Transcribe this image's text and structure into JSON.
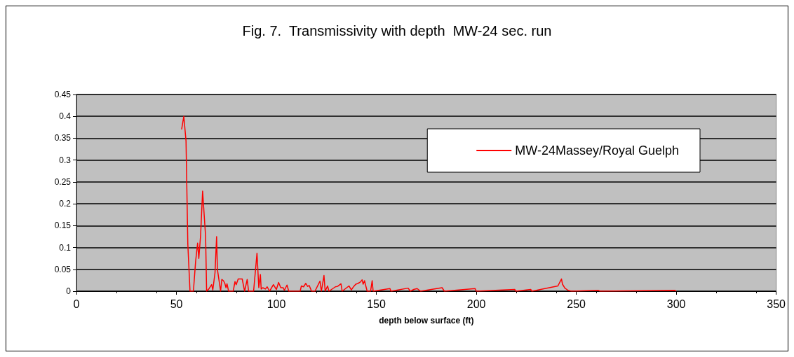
{
  "chart_data": {
    "type": "line",
    "title": "Fig. 7.  Transmissivity with depth  MW-24 sec. run",
    "xlabel": "depth below surface (ft)",
    "xlim": [
      0,
      350
    ],
    "xticks": [
      0,
      50,
      100,
      150,
      200,
      250,
      300,
      350
    ],
    "ylim": [
      0,
      0.45
    ],
    "yticks": [
      0,
      0.05,
      0.1,
      0.15,
      0.2,
      0.25,
      0.3,
      0.35,
      0.4,
      0.45
    ],
    "grid": "y",
    "legend": "top right",
    "marker": "none",
    "line_style": "solid",
    "series": [
      {
        "name": "MW-24Massey/Royal Guelph",
        "color": "#ff0000",
        "x": [
          52.6,
          53.7,
          54.8,
          55.7,
          56.8,
          58.5,
          59.6,
          60.6,
          61.2,
          62.1,
          63.1,
          64.6,
          65.1,
          66.2,
          67.6,
          68.2,
          69.3,
          70.1,
          70.5,
          72.1,
          72.7,
          73.5,
          74.2,
          74.8,
          75.3,
          76.1,
          78.4,
          79.3,
          79.9,
          80.9,
          81.8,
          82.9,
          84.1,
          85.4,
          86.1,
          88.6,
          90.3,
          91.2,
          92,
          92.4,
          93.2,
          94.5,
          95.4,
          96.6,
          98.5,
          100,
          101.1,
          102.2,
          103.4,
          104,
          105.3,
          106.2,
          111.9,
          112.5,
          113.6,
          114.7,
          115.6,
          116.4,
          117.6,
          119.3,
          121.8,
          122.5,
          123.8,
          124.4,
          125.6,
          126.3,
          129.5,
          130.6,
          132.3,
          132.9,
          134.6,
          136.3,
          137.5,
          138.7,
          139.7,
          140.9,
          142,
          142.9,
          143.4,
          144.1,
          144.5,
          145.4,
          147.1,
          147.9,
          148.4,
          156.8,
          157.3,
          165.9,
          167,
          168.7,
          170.4,
          172.1,
          182.9,
          184,
          199.4,
          200,
          219.2,
          219.8,
          227.2,
          227.8,
          240.8,
          241.8,
          242.6,
          243.1,
          244.3,
          245.9,
          247.6,
          261,
          262,
          299.4,
          300
        ],
        "values": [
          0.37,
          0.4,
          0.344,
          0.108,
          0,
          0,
          0.068,
          0.11,
          0.075,
          0.128,
          0.229,
          0.125,
          0,
          0.005,
          0.015,
          0.003,
          0.042,
          0.125,
          0.05,
          0,
          0.027,
          0.024,
          0.018,
          0.008,
          0.017,
          0,
          0,
          0.022,
          0.015,
          0.028,
          0.028,
          0.028,
          0,
          0.027,
          0,
          0,
          0.087,
          0.008,
          0.038,
          0.005,
          0.008,
          0.005,
          0.01,
          0,
          0.015,
          0.004,
          0.02,
          0.008,
          0.008,
          0.002,
          0.014,
          0,
          0,
          0.012,
          0.01,
          0.018,
          0.011,
          0.013,
          0,
          0,
          0.023,
          0,
          0.036,
          0,
          0.012,
          0,
          0.01,
          0.011,
          0.017,
          0,
          0.006,
          0.012,
          0.003,
          0.011,
          0.016,
          0.018,
          0.021,
          0.026,
          0.016,
          0.024,
          0.016,
          0,
          0,
          0.024,
          0,
          0.006,
          0,
          0.007,
          0,
          0.004,
          0.006,
          0,
          0.008,
          0,
          0.006,
          0,
          0.004,
          0,
          0.004,
          0,
          0.012,
          0.021,
          0.028,
          0.016,
          0.007,
          0.002,
          0,
          0.002,
          0,
          0.002,
          0
        ]
      }
    ]
  }
}
